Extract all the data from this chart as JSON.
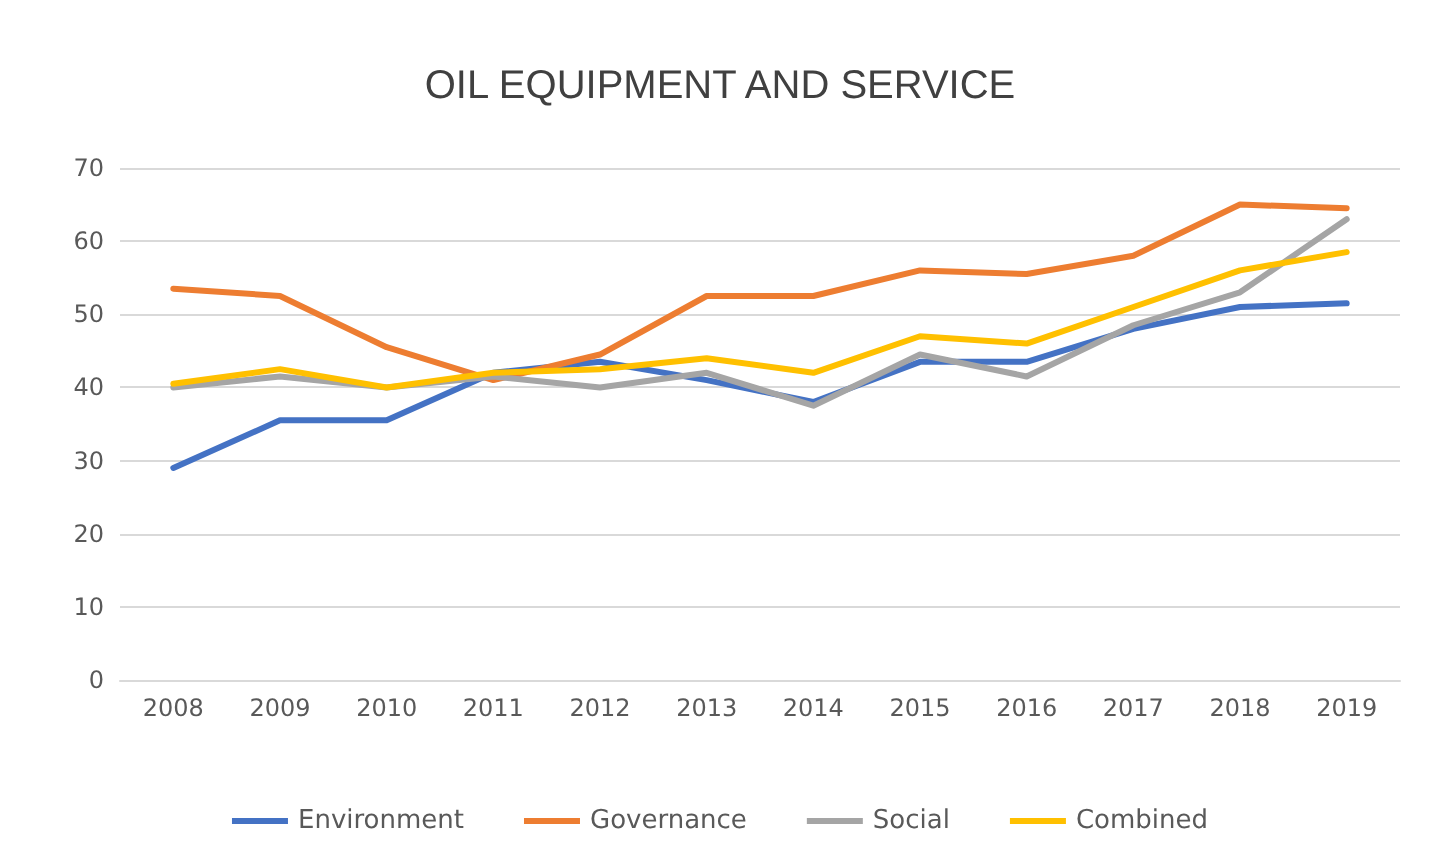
{
  "chart_data": {
    "type": "line",
    "title": "OIL EQUIPMENT AND SERVICE",
    "categories": [
      "2008",
      "2009",
      "2010",
      "2011",
      "2012",
      "2013",
      "2014",
      "2015",
      "2016",
      "2017",
      "2018",
      "2019"
    ],
    "series": [
      {
        "name": "Environment",
        "color": "#4472c4",
        "values": [
          29,
          35.5,
          35.5,
          42,
          43.5,
          41,
          38,
          43.5,
          43.5,
          48,
          51,
          51.5
        ]
      },
      {
        "name": "Governance",
        "color": "#ed7d31",
        "values": [
          53.5,
          52.5,
          45.5,
          41,
          44.5,
          52.5,
          52.5,
          56,
          55.5,
          58,
          65,
          64.5
        ]
      },
      {
        "name": "Social",
        "color": "#a5a5a5",
        "values": [
          40,
          41.5,
          40,
          41.5,
          40,
          42,
          37.5,
          44.5,
          41.5,
          48.5,
          53,
          63
        ]
      },
      {
        "name": "Combined",
        "color": "#ffc000",
        "values": [
          40.5,
          42.5,
          40,
          42,
          42.5,
          44,
          42,
          47,
          46,
          51,
          56,
          58.5
        ]
      }
    ],
    "ylim": [
      0,
      70
    ],
    "yticks": [
      0,
      10,
      20,
      30,
      40,
      50,
      60,
      70
    ],
    "grid": "y",
    "legend": "bottom",
    "marker": "none",
    "line_style": "solid"
  }
}
